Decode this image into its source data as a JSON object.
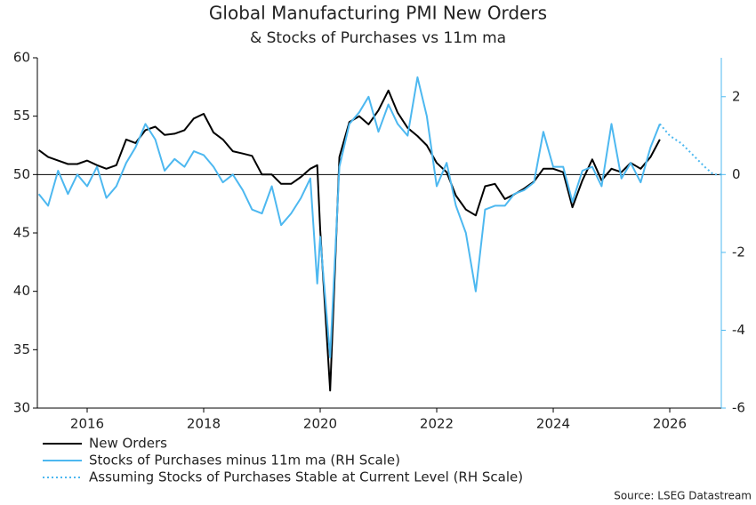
{
  "chart_data": {
    "type": "line",
    "title": "Global Manufacturing PMI New Orders",
    "subtitle": "& Stocks of Purchases vs 11m ma",
    "source": "Source: LSEG Datastream",
    "x": [
      2015.17,
      2015.33,
      2015.5,
      2015.67,
      2015.83,
      2016.0,
      2016.17,
      2016.33,
      2016.5,
      2016.67,
      2016.83,
      2017.0,
      2017.17,
      2017.33,
      2017.5,
      2017.67,
      2017.83,
      2018.0,
      2018.17,
      2018.33,
      2018.5,
      2018.67,
      2018.83,
      2019.0,
      2019.17,
      2019.33,
      2019.5,
      2019.67,
      2019.83,
      2019.95,
      2020.0,
      2020.17,
      2020.33,
      2020.5,
      2020.67,
      2020.83,
      2021.0,
      2021.17,
      2021.33,
      2021.5,
      2021.67,
      2021.83,
      2022.0,
      2022.17,
      2022.33,
      2022.5,
      2022.67,
      2022.83,
      2023.0,
      2023.17,
      2023.33,
      2023.5,
      2023.67,
      2023.83,
      2024.0,
      2024.17,
      2024.33,
      2024.5,
      2024.67,
      2024.83,
      2025.0,
      2025.17,
      2025.33,
      2025.5,
      2025.67,
      2025.83
    ],
    "series": [
      {
        "name": "New Orders",
        "color": "#000000",
        "axis": "y",
        "values": [
          52.1,
          51.5,
          51.2,
          50.9,
          50.9,
          51.2,
          50.8,
          50.5,
          50.8,
          53.0,
          52.7,
          53.8,
          54.1,
          53.4,
          53.5,
          53.8,
          54.8,
          55.2,
          53.6,
          53.0,
          52.0,
          51.8,
          51.6,
          50.0,
          50.0,
          49.2,
          49.2,
          49.8,
          50.5,
          50.8,
          45.3,
          31.5,
          51.5,
          54.5,
          55.0,
          54.3,
          55.5,
          57.2,
          55.3,
          54.0,
          53.3,
          52.5,
          51.0,
          50.2,
          48.2,
          47.0,
          46.5,
          49.0,
          49.2,
          47.9,
          48.3,
          48.8,
          49.4,
          50.5,
          50.5,
          50.2,
          47.2,
          49.5,
          51.3,
          49.5,
          50.5,
          50.2,
          51.0,
          50.5,
          51.5,
          53.0
        ]
      },
      {
        "name": "Stocks of Purchases minus 11m ma (RH Scale)",
        "color": "#4db8f0",
        "axis": "y2",
        "values": [
          -0.5,
          -0.8,
          0.1,
          -0.5,
          0.0,
          -0.3,
          0.2,
          -0.6,
          -0.3,
          0.3,
          0.7,
          1.3,
          0.9,
          0.1,
          0.4,
          0.2,
          0.6,
          0.5,
          0.2,
          -0.2,
          0.0,
          -0.4,
          -0.9,
          -1.0,
          -0.3,
          -1.3,
          -1.0,
          -0.6,
          -0.1,
          -2.8,
          -1.6,
          -4.7,
          0.2,
          1.3,
          1.6,
          2.0,
          1.1,
          1.8,
          1.3,
          1.0,
          2.5,
          1.5,
          -0.3,
          0.3,
          -0.8,
          -1.5,
          -3.0,
          -0.9,
          -0.8,
          -0.8,
          -0.5,
          -0.4,
          -0.2,
          1.1,
          0.2,
          0.2,
          -0.7,
          0.1,
          0.2,
          -0.3,
          1.3,
          -0.1,
          0.3,
          -0.2,
          0.7,
          1.3
        ]
      },
      {
        "name": "Assuming Stocks of Purchases Stable at Current Level (RH Scale)",
        "color": "#4db8f0",
        "axis": "y2",
        "dash": "dotted",
        "x": [
          2025.83,
          2026.0,
          2026.2,
          2026.4,
          2026.6,
          2026.75,
          2026.88
        ],
        "values": [
          1.3,
          1.0,
          0.8,
          0.5,
          0.2,
          0.0,
          0.0
        ]
      }
    ],
    "xlim": [
      2015.145,
      2026.885
    ],
    "xticks": [
      2016,
      2018,
      2020,
      2022,
      2024,
      2026
    ],
    "ylim": [
      30,
      60
    ],
    "yticks": [
      30,
      35,
      40,
      45,
      50,
      55,
      60
    ],
    "y2lim": [
      -6,
      3
    ],
    "y2ticks": [
      -6,
      -4,
      -2,
      0,
      2
    ],
    "y2_color": "#4db8f0",
    "reference_line": {
      "axis": "y2",
      "value": 0
    },
    "legend": "bottom-left"
  }
}
